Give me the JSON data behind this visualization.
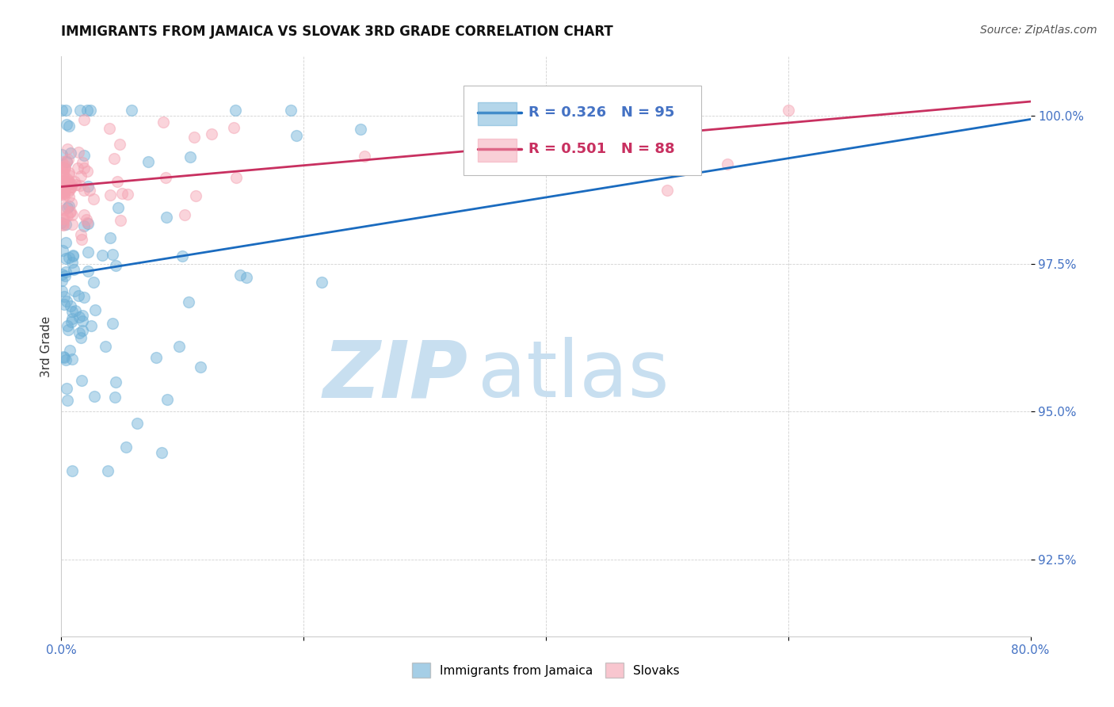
{
  "title": "IMMIGRANTS FROM JAMAICA VS SLOVAK 3RD GRADE CORRELATION CHART",
  "source": "Source: ZipAtlas.com",
  "ylabel": "3rd Grade",
  "yticks": [
    92.5,
    95.0,
    97.5,
    100.0
  ],
  "legend_label_blue": "Immigrants from Jamaica",
  "legend_label_pink": "Slovaks",
  "R_blue": 0.326,
  "N_blue": 95,
  "R_pink": 0.501,
  "N_pink": 88,
  "color_blue": "#6aaed6",
  "color_pink": "#f4a0b0",
  "color_line_blue": "#1a6bbf",
  "color_line_pink": "#c83060",
  "watermark_zip": "ZIP",
  "watermark_atlas": "atlas",
  "watermark_color_zip": "#c8dff0",
  "watermark_color_atlas": "#c8dff0",
  "xlim": [
    0,
    80
  ],
  "ylim": [
    91.2,
    101.0
  ],
  "blue_intercept": 97.3,
  "blue_slope": 0.033,
  "pink_intercept": 98.8,
  "pink_slope": 0.018
}
